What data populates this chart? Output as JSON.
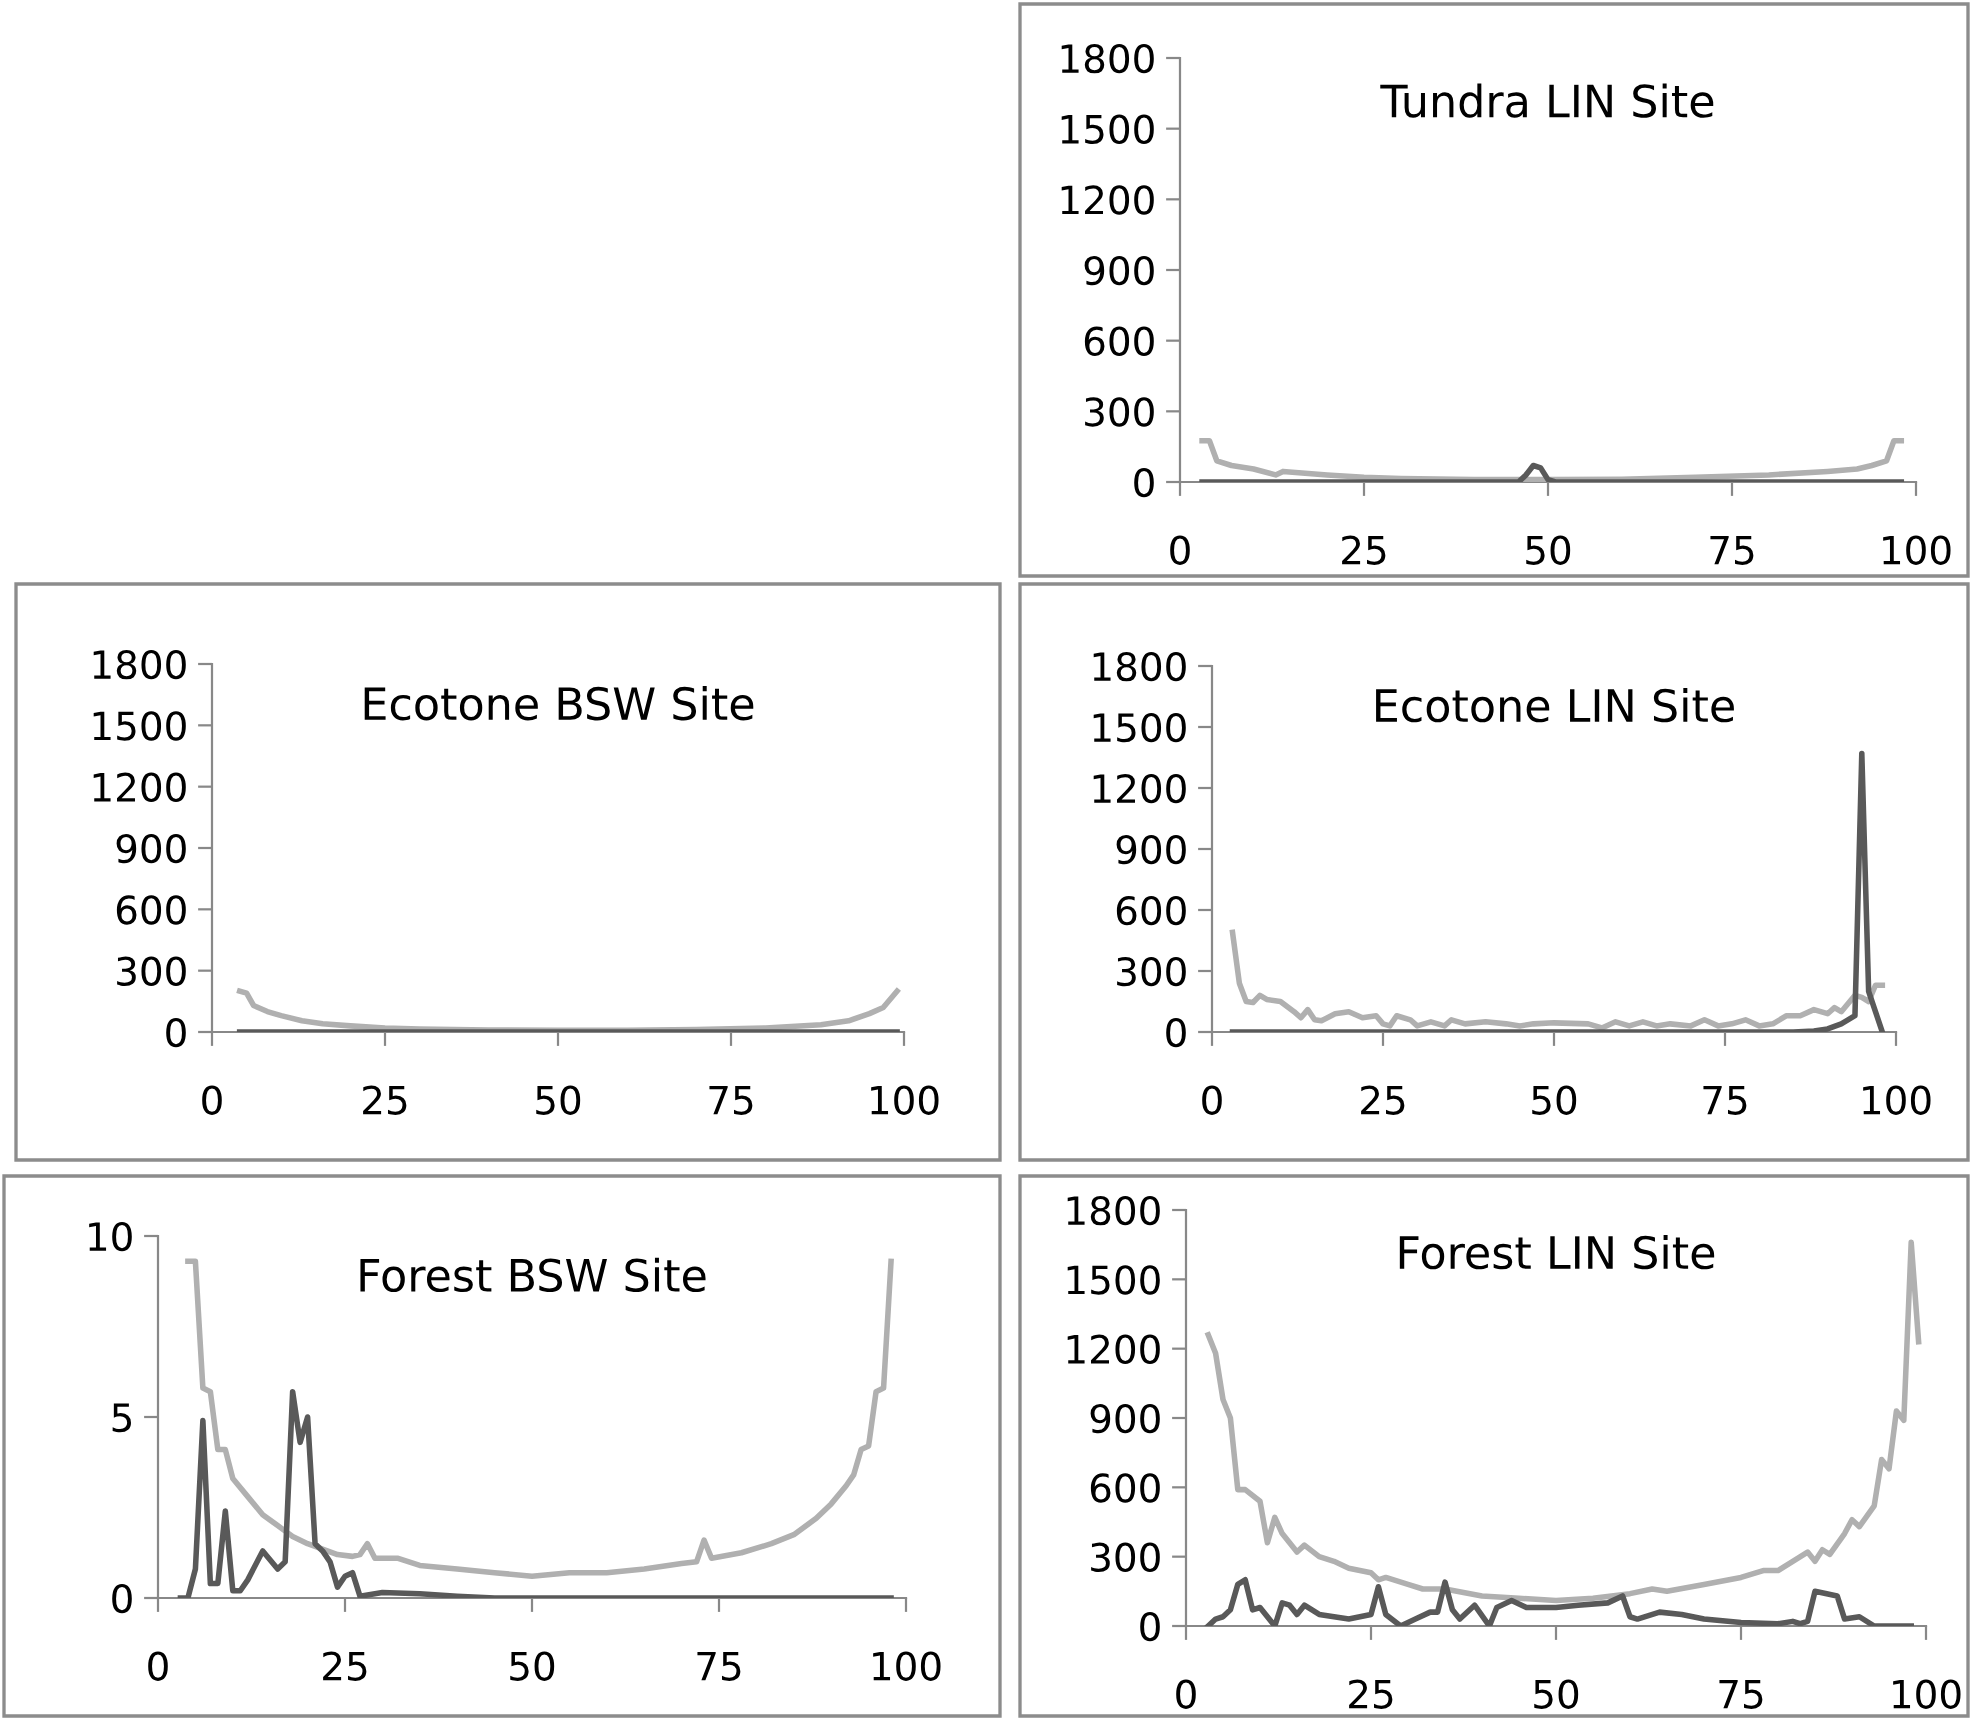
{
  "chart_data": [
    {
      "type": "line",
      "title": "Tundra LIN Site",
      "xlim": [
        0,
        100
      ],
      "xticks": [
        0,
        25,
        50,
        75,
        100
      ],
      "ylim": [
        0,
        1800
      ],
      "yticks": [
        0,
        300,
        600,
        900,
        1200,
        1500,
        1800
      ],
      "grid": false,
      "marker": "none",
      "line_style": "solid",
      "series": [
        {
          "color": "#595959",
          "x": [
            3,
            46,
            47,
            48,
            49,
            50,
            51,
            98
          ],
          "values": [
            0,
            0,
            30,
            70,
            60,
            10,
            0,
            0
          ]
        },
        {
          "color": "#b0b0b0",
          "x": [
            3,
            4,
            5,
            7,
            10,
            13,
            14,
            20,
            25,
            30,
            40,
            50,
            60,
            70,
            80,
            88,
            92,
            94,
            96,
            97,
            98
          ],
          "values": [
            175,
            175,
            90,
            70,
            55,
            30,
            45,
            30,
            20,
            15,
            10,
            10,
            12,
            20,
            30,
            45,
            55,
            70,
            90,
            175,
            175
          ]
        }
      ]
    },
    {
      "type": "line",
      "title": "Ecotone BSW Site",
      "xlim": [
        0,
        100
      ],
      "xticks": [
        0,
        25,
        50,
        75,
        100
      ],
      "ylim": [
        0,
        1800
      ],
      "yticks": [
        0,
        300,
        600,
        900,
        1200,
        1500,
        1800
      ],
      "grid": false,
      "marker": "none",
      "line_style": "solid",
      "series": [
        {
          "color": "#595959",
          "x": [
            4,
            50,
            99
          ],
          "values": [
            0,
            0,
            0
          ]
        },
        {
          "color": "#b0b0b0",
          "x": [
            4,
            5,
            6,
            8,
            10,
            13,
            16,
            20,
            25,
            30,
            40,
            50,
            60,
            70,
            80,
            88,
            92,
            95,
            97,
            99
          ],
          "values": [
            200,
            190,
            130,
            100,
            80,
            55,
            40,
            30,
            20,
            15,
            10,
            8,
            8,
            12,
            20,
            35,
            55,
            90,
            120,
            200
          ]
        }
      ]
    },
    {
      "type": "line",
      "title": "Ecotone LIN Site",
      "xlim": [
        0,
        100
      ],
      "xticks": [
        0,
        25,
        50,
        75,
        100
      ],
      "ylim": [
        0,
        1800
      ],
      "yticks": [
        0,
        300,
        600,
        900,
        1200,
        1500,
        1800
      ],
      "grid": false,
      "marker": "none",
      "line_style": "solid",
      "series": [
        {
          "color": "#595959",
          "x": [
            3,
            85,
            88,
            90,
            92,
            94,
            95,
            96,
            98
          ],
          "values": [
            0,
            0,
            5,
            15,
            40,
            80,
            1370,
            200,
            0
          ]
        },
        {
          "color": "#b0b0b0",
          "x": [
            3,
            4,
            5,
            6,
            7,
            8,
            10,
            12,
            13,
            14,
            15,
            16,
            18,
            20,
            22,
            24,
            25,
            26,
            27,
            29,
            30,
            32,
            34,
            35,
            37,
            40,
            43,
            45,
            47,
            50,
            55,
            57,
            59,
            61,
            63,
            65,
            67,
            70,
            72,
            74,
            76,
            78,
            80,
            82,
            84,
            86,
            88,
            90,
            91,
            92,
            93,
            94,
            95,
            96,
            97,
            98
          ],
          "values": [
            490,
            240,
            150,
            145,
            180,
            160,
            150,
            100,
            70,
            110,
            60,
            55,
            90,
            100,
            70,
            80,
            40,
            30,
            80,
            60,
            30,
            50,
            30,
            60,
            40,
            50,
            40,
            30,
            40,
            45,
            40,
            20,
            50,
            30,
            50,
            30,
            40,
            30,
            60,
            30,
            40,
            60,
            30,
            40,
            80,
            80,
            110,
            90,
            120,
            100,
            140,
            180,
            170,
            150,
            230,
            230
          ]
        }
      ]
    },
    {
      "type": "line",
      "title": "Forest BSW Site",
      "xlim": [
        0,
        100
      ],
      "xticks": [
        0,
        25,
        50,
        75,
        100
      ],
      "ylim": [
        0,
        10
      ],
      "yticks": [
        0,
        5,
        10
      ],
      "grid": false,
      "marker": "none",
      "line_style": "solid",
      "series": [
        {
          "color": "#595959",
          "x": [
            3,
            4,
            5,
            6,
            7,
            8,
            9,
            10,
            11,
            12,
            14,
            16,
            17,
            18,
            19,
            20,
            21,
            22,
            23,
            24,
            25,
            26,
            27,
            30,
            35,
            40,
            45,
            98
          ],
          "values": [
            0,
            0,
            0.8,
            4.9,
            0.4,
            0.4,
            2.4,
            0.2,
            0.2,
            0.5,
            1.3,
            0.8,
            1.0,
            5.7,
            4.3,
            5.0,
            1.5,
            1.3,
            1.0,
            0.3,
            0.6,
            0.7,
            0.05,
            0.15,
            0.12,
            0.05,
            0,
            0
          ]
        },
        {
          "color": "#b0b0b0",
          "x": [
            4,
            5,
            6,
            7,
            8,
            9,
            10,
            12,
            14,
            16,
            18,
            20,
            22,
            24,
            26,
            27,
            28,
            29,
            32,
            35,
            40,
            45,
            50,
            55,
            60,
            65,
            70,
            72,
            73,
            74,
            78,
            82,
            85,
            88,
            90,
            92,
            93,
            94,
            95,
            96,
            97,
            98
          ],
          "values": [
            9.3,
            9.3,
            5.8,
            5.7,
            4.1,
            4.1,
            3.3,
            2.8,
            2.3,
            2.0,
            1.7,
            1.5,
            1.35,
            1.2,
            1.15,
            1.2,
            1.5,
            1.1,
            1.1,
            0.9,
            0.8,
            0.7,
            0.6,
            0.7,
            0.7,
            0.8,
            0.95,
            1.0,
            1.6,
            1.1,
            1.25,
            1.5,
            1.75,
            2.2,
            2.6,
            3.1,
            3.4,
            4.1,
            4.2,
            5.7,
            5.8,
            9.3
          ]
        }
      ]
    },
    {
      "type": "line",
      "title": "Forest LIN Site",
      "xlim": [
        0,
        100
      ],
      "xticks": [
        0,
        25,
        50,
        75,
        100
      ],
      "ylim": [
        0,
        1800
      ],
      "yticks": [
        0,
        300,
        600,
        900,
        1200,
        1500,
        1800
      ],
      "grid": false,
      "marker": "none",
      "line_style": "solid",
      "series": [
        {
          "color": "#595959",
          "x": [
            3,
            4,
            5,
            6,
            7,
            8,
            9,
            10,
            12,
            13,
            14,
            15,
            16,
            18,
            22,
            25,
            26,
            27,
            29,
            31,
            33,
            34,
            35,
            36,
            37,
            39,
            41,
            42,
            44,
            46,
            50,
            53,
            57,
            59,
            60,
            61,
            64,
            67,
            70,
            75,
            80,
            82,
            83,
            84,
            85,
            88,
            89,
            91,
            93,
            98
          ],
          "values": [
            0,
            30,
            40,
            70,
            180,
            200,
            70,
            80,
            0,
            100,
            90,
            50,
            90,
            50,
            30,
            50,
            170,
            50,
            0,
            30,
            60,
            60,
            190,
            70,
            30,
            90,
            0,
            80,
            110,
            80,
            80,
            90,
            100,
            130,
            40,
            30,
            60,
            50,
            30,
            15,
            10,
            20,
            10,
            20,
            150,
            130,
            30,
            40,
            0,
            0
          ]
        },
        {
          "color": "#b0b0b0",
          "x": [
            3,
            4,
            5,
            6,
            7,
            8,
            10,
            11,
            12,
            13,
            15,
            16,
            18,
            20,
            22,
            25,
            26,
            27,
            30,
            32,
            35,
            40,
            45,
            50,
            55,
            60,
            63,
            65,
            70,
            75,
            78,
            80,
            82,
            84,
            85,
            86,
            87,
            89,
            90,
            91,
            93,
            94,
            95,
            96,
            97,
            98,
            99
          ],
          "values": [
            1260,
            1180,
            980,
            900,
            590,
            590,
            540,
            360,
            470,
            400,
            320,
            350,
            300,
            280,
            250,
            230,
            200,
            210,
            180,
            160,
            160,
            130,
            120,
            110,
            120,
            140,
            160,
            150,
            180,
            210,
            240,
            240,
            280,
            320,
            280,
            330,
            310,
            400,
            460,
            430,
            520,
            720,
            680,
            930,
            890,
            1660,
            1230
          ]
        }
      ]
    }
  ]
}
